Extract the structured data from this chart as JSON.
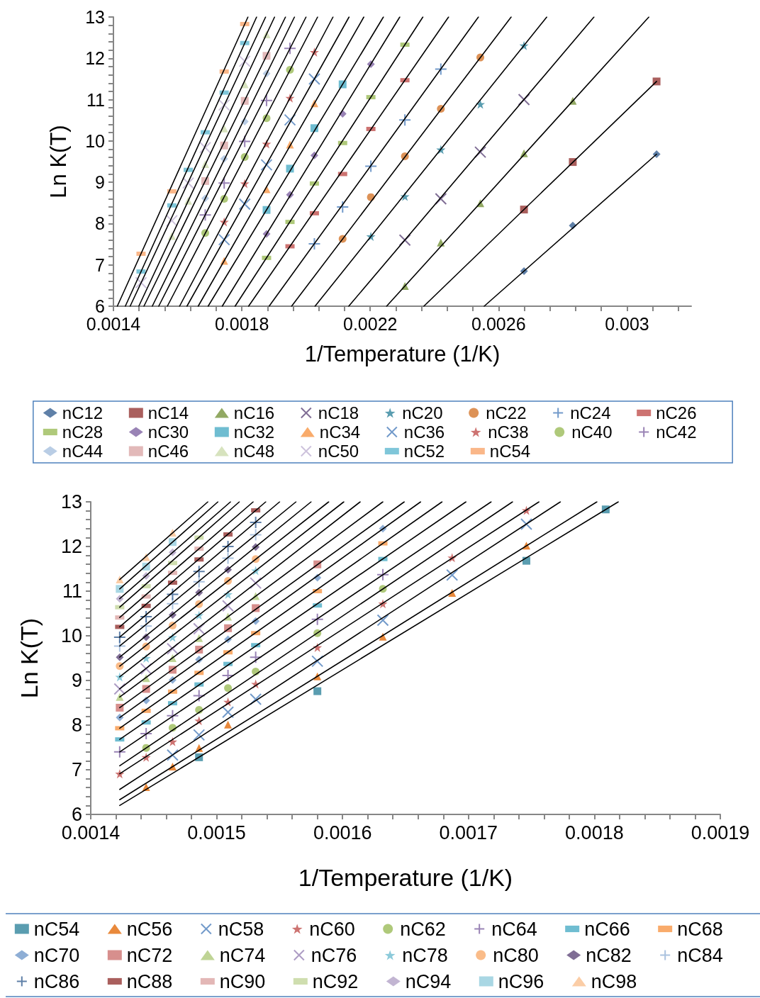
{
  "chart_data": [
    {
      "type": "scatter",
      "xlabel": "1/Temperature (1/K)",
      "ylabel": "Ln K(T)",
      "legend": "bottom",
      "line_style": "solid",
      "xlim": [
        0.0014,
        0.0032
      ],
      "xticks": [
        0.0014,
        {
          "value": 0.00148,
          "label": null
        },
        {
          "value": 0.00156,
          "label": null
        },
        {
          "value": 0.00164,
          "label": null
        },
        {
          "value": 0.00172,
          "label": null
        },
        0.0018,
        {
          "value": 0.00188,
          "label": null
        },
        {
          "value": 0.00196,
          "label": null
        },
        {
          "value": 0.00204,
          "label": null
        },
        {
          "value": 0.00212,
          "label": null
        },
        0.0022,
        {
          "value": 0.00228,
          "label": null
        },
        {
          "value": 0.00236,
          "label": null
        },
        {
          "value": 0.00244,
          "label": null
        },
        {
          "value": 0.00252,
          "label": null
        },
        0.0026,
        {
          "value": 0.00268,
          "label": null
        },
        {
          "value": 0.00276,
          "label": null
        },
        {
          "value": 0.00284,
          "label": null
        },
        {
          "value": 0.00292,
          "label": null
        },
        0.003,
        {
          "value": 0.00308,
          "label": null
        },
        {
          "value": 0.00316,
          "label": null
        }
      ],
      "ylim": [
        6,
        13
      ],
      "yticks": [
        6,
        {
          "value": 6.2,
          "label": null
        },
        {
          "value": 6.4,
          "label": null
        },
        {
          "value": 6.6,
          "label": null
        },
        {
          "value": 6.8,
          "label": null
        },
        7,
        {
          "value": 7.2,
          "label": null
        },
        {
          "value": 7.4,
          "label": null
        },
        {
          "value": 7.6,
          "label": null
        },
        {
          "value": 7.8,
          "label": null
        },
        8,
        {
          "value": 8.2,
          "label": null
        },
        {
          "value": 8.4,
          "label": null
        },
        {
          "value": 8.6,
          "label": null
        },
        {
          "value": 8.8,
          "label": null
        },
        9,
        {
          "value": 9.2,
          "label": null
        },
        {
          "value": 9.4,
          "label": null
        },
        {
          "value": 9.6,
          "label": null
        },
        {
          "value": 9.8,
          "label": null
        },
        10,
        {
          "value": 10.2,
          "label": null
        },
        {
          "value": 10.4,
          "label": null
        },
        {
          "value": 10.6,
          "label": null
        },
        {
          "value": 10.8,
          "label": null
        },
        11,
        {
          "value": 11.2,
          "label": null
        },
        {
          "value": 11.4,
          "label": null
        },
        {
          "value": 11.6,
          "label": null
        },
        {
          "value": 11.8,
          "label": null
        },
        12,
        {
          "value": 12.2,
          "label": null
        },
        {
          "value": 12.4,
          "label": null
        },
        {
          "value": 12.6,
          "label": null
        },
        {
          "value": 12.8,
          "label": null
        },
        13
      ],
      "series": [
        {
          "name": "nC12",
          "type": "scatter",
          "marker": "diamond",
          "color": "#376092",
          "x": [
            0.002679,
            0.002831,
            0.003092
          ],
          "values": [
            6.85,
            7.95,
            9.68
          ]
        },
        {
          "name": "nC14",
          "type": "scatter",
          "marker": "square",
          "color": "#953735",
          "x": [
            0.002679,
            0.002831,
            0.003092
          ],
          "values": [
            8.34,
            9.49,
            11.44
          ]
        },
        {
          "name": "nC16",
          "type": "scatter",
          "marker": "triangle",
          "color": "#77933c",
          "x": [
            0.002308,
            0.00242,
            0.002543,
            0.002679,
            0.002831
          ],
          "values": [
            6.49,
            7.54,
            8.49,
            9.7,
            10.97
          ]
        },
        {
          "name": "nC18",
          "type": "scatter",
          "marker": "cross",
          "color": "#604a7b",
          "x": [
            0.002308,
            0.00242,
            0.002543,
            0.002679
          ],
          "values": [
            7.6,
            8.6,
            9.73,
            11.0
          ]
        },
        {
          "name": "nC20",
          "type": "scatter",
          "marker": "star",
          "color": "#31859c",
          "x": [
            0.002202,
            0.002308,
            0.00242,
            0.002543,
            0.002679
          ],
          "values": [
            7.69,
            8.66,
            9.79,
            10.89,
            12.31
          ]
        },
        {
          "name": "nC22",
          "type": "scatter",
          "marker": "circle",
          "color": "#d4772d",
          "x": [
            0.002114,
            0.002202,
            0.002308,
            0.00242,
            0.002543
          ],
          "values": [
            7.63,
            8.64,
            9.63,
            10.78,
            12.02
          ]
        },
        {
          "name": "nC24",
          "type": "scatter",
          "marker": "plus",
          "color": "#4f81bd",
          "x": [
            0.002026,
            0.002114,
            0.002202,
            0.002308,
            0.00242
          ],
          "values": [
            7.51,
            8.4,
            9.39,
            10.51,
            11.74
          ]
        },
        {
          "name": "nC26",
          "type": "scatter",
          "color": "#c0504d",
          "x": [
            0.00195,
            0.002026,
            0.002114,
            0.002202,
            0.002308
          ],
          "values": [
            7.45,
            8.25,
            9.2,
            10.29,
            11.47
          ]
        },
        {
          "name": "nC28",
          "type": "scatter",
          "color": "#9bbb59",
          "x": [
            0.001877,
            0.00195,
            0.002026,
            0.002114,
            0.002202,
            0.002308
          ],
          "values": [
            7.17,
            8.04,
            8.97,
            9.95,
            11.06,
            12.33
          ]
        },
        {
          "name": "nC30",
          "type": "scatter",
          "marker": "diamond",
          "color": "#8064a2",
          "x": [
            0.001877,
            0.00195,
            0.002026,
            0.002114,
            0.002202
          ],
          "values": [
            7.75,
            8.7,
            9.65,
            10.66,
            11.86
          ]
        },
        {
          "name": "nC32",
          "type": "scatter",
          "marker": "square",
          "color": "#4bacc6",
          "x": [
            0.001877,
            0.00195,
            0.002026,
            0.002114
          ],
          "values": [
            8.33,
            9.33,
            10.31,
            11.37
          ]
        },
        {
          "name": "nC34",
          "type": "scatter",
          "marker": "triangle",
          "color": "#f79646",
          "x": [
            0.001745,
            0.001877,
            0.00195,
            0.002026
          ],
          "values": [
            7.1,
            8.83,
            9.91,
            10.91
          ]
        },
        {
          "name": "nC36",
          "type": "scatter",
          "marker": "cross",
          "color": "#4f81bd",
          "x": [
            0.001745,
            0.001809,
            0.001877,
            0.00195,
            0.002026
          ],
          "values": [
            7.61,
            8.47,
            9.42,
            10.51,
            11.5
          ]
        },
        {
          "name": "nC38",
          "type": "scatter",
          "marker": "star",
          "color": "#c0504d",
          "x": [
            0.001745,
            0.001809,
            0.001877,
            0.00195,
            0.002026
          ],
          "values": [
            8.04,
            8.97,
            9.93,
            11.04,
            12.15
          ]
        },
        {
          "name": "nC40",
          "type": "scatter",
          "marker": "circle",
          "color": "#9bbb59",
          "x": [
            0.001686,
            0.001745,
            0.001809,
            0.001877,
            0.00195
          ],
          "values": [
            7.77,
            8.6,
            9.61,
            10.55,
            11.72
          ]
        },
        {
          "name": "nC42",
          "type": "scatter",
          "marker": "plus",
          "color": "#8064a2",
          "x": [
            0.001686,
            0.001745,
            0.001809,
            0.001877,
            0.00195
          ],
          "values": [
            8.21,
            8.98,
            9.99,
            10.98,
            12.24
          ]
        },
        {
          "name": "nC44",
          "type": "scatter",
          "marker": "diamond",
          "color": "#a7c0de",
          "x": [
            0.001686,
            0.001745,
            0.001809,
            0.001877
          ],
          "values": [
            8.61,
            9.57,
            10.47,
            11.63
          ]
        },
        {
          "name": "nC46",
          "type": "scatter",
          "marker": "square",
          "color": "#dba8a7",
          "x": [
            0.001686,
            0.001745,
            0.001809,
            0.001877
          ],
          "values": [
            9.03,
            9.89,
            10.97,
            12.06
          ]
        },
        {
          "name": "nC48",
          "type": "scatter",
          "marker": "triangle",
          "color": "#cddcae",
          "x": [
            0.001582,
            0.001633,
            0.001686,
            0.001745,
            0.001809,
            0.001877
          ],
          "values": [
            7.7,
            8.55,
            9.44,
            10.3,
            11.37,
            12.58
          ]
        },
        {
          "name": "nC50",
          "type": "scatter",
          "marker": "cross",
          "color": "#c0b3d3",
          "x": [
            0.001486,
            0.001582,
            0.001633,
            0.001686,
            0.001745,
            0.001809
          ],
          "values": [
            6.57,
            8.07,
            8.98,
            9.84,
            10.87,
            11.93
          ]
        },
        {
          "name": "nC52",
          "type": "scatter",
          "color": "#5fb8d0",
          "x": [
            0.001486,
            0.001582,
            0.001633,
            0.001686,
            0.001745,
            0.001809
          ],
          "values": [
            6.84,
            8.44,
            9.3,
            10.21,
            11.17,
            12.37
          ]
        },
        {
          "name": "nC54",
          "type": "scatter",
          "color": "#f9a56b",
          "x": [
            0.001486,
            0.001582,
            0.001745,
            0.001809
          ],
          "values": [
            7.27,
            8.78,
            11.68,
            12.83
          ]
        },
        {
          "type": "line",
          "marker": "none",
          "color": "#000000",
          "x": [
            0.002555,
            0.003092
          ],
          "values": [
            6,
            9.68
          ]
        },
        {
          "type": "line",
          "marker": "none",
          "color": "#000000",
          "x": [
            0.002367,
            0.003092
          ],
          "values": [
            6,
            11.44
          ]
        },
        {
          "type": "line",
          "marker": "none",
          "color": "#000000",
          "x": [
            0.002251,
            0.003068
          ],
          "values": [
            6,
            13
          ]
        },
        {
          "type": "line",
          "marker": "none",
          "color": "#000000",
          "x": [
            0.002133,
            0.002897
          ],
          "values": [
            6,
            13
          ]
        },
        {
          "type": "line",
          "marker": "none",
          "color": "#000000",
          "x": [
            0.002028,
            0.00275
          ],
          "values": [
            6,
            13
          ]
        },
        {
          "type": "line",
          "marker": "none",
          "color": "#000000",
          "x": [
            0.001955,
            0.002639
          ],
          "values": [
            6,
            13
          ]
        },
        {
          "type": "line",
          "marker": "none",
          "color": "#000000",
          "x": [
            0.001885,
            0.002537
          ],
          "values": [
            6,
            13
          ]
        },
        {
          "type": "line",
          "marker": "none",
          "color": "#000000",
          "x": [
            0.001821,
            0.002444
          ],
          "values": [
            6,
            13
          ]
        },
        {
          "type": "line",
          "marker": "none",
          "color": "#000000",
          "x": [
            0.001779,
            0.002364
          ],
          "values": [
            6,
            13
          ]
        },
        {
          "type": "line",
          "marker": "none",
          "color": "#000000",
          "x": [
            0.001739,
            0.002292
          ],
          "values": [
            6,
            13
          ]
        },
        {
          "type": "line",
          "marker": "none",
          "color": "#000000",
          "x": [
            0.001695,
            0.002241
          ],
          "values": [
            6,
            13
          ]
        },
        {
          "type": "line",
          "marker": "none",
          "color": "#000000",
          "x": [
            0.001664,
            0.00218
          ],
          "values": [
            6,
            13
          ]
        },
        {
          "type": "line",
          "marker": "none",
          "color": "#000000",
          "x": [
            0.001629,
            0.002134
          ],
          "values": [
            6,
            13
          ]
        },
        {
          "type": "line",
          "marker": "none",
          "color": "#000000",
          "x": [
            0.001606,
            0.002084
          ],
          "values": [
            6,
            13
          ]
        },
        {
          "type": "line",
          "marker": "none",
          "color": "#000000",
          "x": [
            0.001568,
            0.002036
          ],
          "values": [
            6,
            13
          ]
        },
        {
          "type": "line",
          "marker": "none",
          "color": "#000000",
          "x": [
            0.001541,
            0.002
          ],
          "values": [
            6,
            13
          ]
        },
        {
          "type": "line",
          "marker": "none",
          "color": "#000000",
          "x": [
            0.001521,
            0.001964
          ],
          "values": [
            6,
            13
          ]
        },
        {
          "type": "line",
          "marker": "none",
          "color": "#000000",
          "x": [
            0.001495,
            0.001936
          ],
          "values": [
            6,
            13
          ]
        },
        {
          "type": "line",
          "marker": "none",
          "color": "#000000",
          "x": [
            0.001479,
            0.001902
          ],
          "values": [
            6,
            13
          ]
        },
        {
          "type": "line",
          "marker": "none",
          "color": "#000000",
          "x": [
            0.001452,
            0.001874
          ],
          "values": [
            6,
            13
          ]
        },
        {
          "type": "line",
          "marker": "none",
          "color": "#000000",
          "x": [
            0.001437,
            0.001846
          ],
          "values": [
            6,
            13
          ]
        },
        {
          "type": "line",
          "marker": "none",
          "color": "#000000",
          "x": [
            0.001412,
            0.001819
          ],
          "values": [
            6,
            13
          ]
        }
      ]
    },
    {
      "type": "scatter",
      "xlabel": "1/Temperature (1/K)",
      "ylabel": "Ln K(T)",
      "legend": "bottom",
      "line_style": "solid",
      "xlim": [
        0.0014,
        0.0019
      ],
      "xticks": [
        0.0014,
        {
          "value": 0.00142,
          "label": null
        },
        {
          "value": 0.00144,
          "label": null
        },
        {
          "value": 0.00146,
          "label": null
        },
        {
          "value": 0.00148,
          "label": null
        },
        0.0015,
        {
          "value": 0.00152,
          "label": null
        },
        {
          "value": 0.00154,
          "label": null
        },
        {
          "value": 0.00156,
          "label": null
        },
        {
          "value": 0.00158,
          "label": null
        },
        0.0016,
        {
          "value": 0.00162,
          "label": null
        },
        {
          "value": 0.00164,
          "label": null
        },
        {
          "value": 0.00166,
          "label": null
        },
        {
          "value": 0.00168,
          "label": null
        },
        0.0017,
        {
          "value": 0.00172,
          "label": null
        },
        {
          "value": 0.00174,
          "label": null
        },
        {
          "value": 0.00176,
          "label": null
        },
        {
          "value": 0.00178,
          "label": null
        },
        0.0018,
        {
          "value": 0.00182,
          "label": null
        },
        {
          "value": 0.00184,
          "label": null
        },
        {
          "value": 0.00186,
          "label": null
        },
        {
          "value": 0.00188,
          "label": null
        },
        0.0019
      ],
      "ylim": [
        6,
        13
      ],
      "yticks": [
        6,
        {
          "value": 6.2,
          "label": null
        },
        {
          "value": 6.4,
          "label": null
        },
        {
          "value": 6.6,
          "label": null
        },
        {
          "value": 6.8,
          "label": null
        },
        7,
        {
          "value": 7.2,
          "label": null
        },
        {
          "value": 7.4,
          "label": null
        },
        {
          "value": 7.6,
          "label": null
        },
        {
          "value": 7.8,
          "label": null
        },
        8,
        {
          "value": 8.2,
          "label": null
        },
        {
          "value": 8.4,
          "label": null
        },
        {
          "value": 8.6,
          "label": null
        },
        {
          "value": 8.8,
          "label": null
        },
        9,
        {
          "value": 9.2,
          "label": null
        },
        {
          "value": 9.4,
          "label": null
        },
        {
          "value": 9.6,
          "label": null
        },
        {
          "value": 9.8,
          "label": null
        },
        10,
        {
          "value": 10.2,
          "label": null
        },
        {
          "value": 10.4,
          "label": null
        },
        {
          "value": 10.6,
          "label": null
        },
        {
          "value": 10.8,
          "label": null
        },
        11,
        {
          "value": 11.2,
          "label": null
        },
        {
          "value": 11.4,
          "label": null
        },
        {
          "value": 11.6,
          "label": null
        },
        {
          "value": 11.8,
          "label": null
        },
        12,
        {
          "value": 12.2,
          "label": null
        },
        {
          "value": 12.4,
          "label": null
        },
        {
          "value": 12.6,
          "label": null
        },
        {
          "value": 12.8,
          "label": null
        },
        13
      ],
      "series": [
        {
          "name": "nC54",
          "type": "scatter",
          "marker": "square",
          "color": "#31859c",
          "x": [
            0.001486,
            0.00158,
            0.001746,
            0.001809
          ],
          "values": [
            7.28,
            8.76,
            11.68,
            12.83
          ]
        },
        {
          "name": "nC56",
          "type": "scatter",
          "marker": "triangle",
          "color": "#e46c0a",
          "x": [
            0.001444,
            0.001465,
            0.001486,
            0.001509,
            0.00158,
            0.001632,
            0.001687,
            0.001746
          ],
          "values": [
            6.61,
            7.07,
            7.49,
            8.01,
            9.09,
            9.98,
            10.96,
            12.02
          ]
        },
        {
          "name": "nC58",
          "type": "scatter",
          "marker": "cross",
          "color": "#4f81bd",
          "x": [
            0.001465,
            0.001486,
            0.001509,
            0.001531,
            0.00158,
            0.001632,
            0.001687,
            0.001746
          ],
          "values": [
            7.33,
            7.78,
            8.29,
            8.58,
            9.43,
            10.35,
            11.36,
            12.5
          ]
        },
        {
          "name": "nC60",
          "type": "scatter",
          "marker": "star",
          "color": "#c0504d",
          "x": [
            0.001423,
            0.001444,
            0.001465,
            0.001486,
            0.001509,
            0.001531,
            0.00158,
            0.001632,
            0.001687,
            0.001746
          ],
          "values": [
            6.91,
            7.28,
            7.63,
            8.1,
            8.52,
            8.92,
            9.74,
            10.72,
            11.75,
            12.81
          ]
        },
        {
          "name": "nC62",
          "type": "scatter",
          "marker": "circle",
          "color": "#9bbb59",
          "x": [
            0.001444,
            0.001465,
            0.001486,
            0.001509,
            0.001531,
            0.00158,
            0.001632
          ],
          "values": [
            7.49,
            7.94,
            8.34,
            8.83,
            9.2,
            10.06,
            11.05
          ]
        },
        {
          "name": "nC64",
          "type": "scatter",
          "marker": "plus",
          "color": "#8064a2",
          "x": [
            0.001423,
            0.001444,
            0.001465,
            0.001486,
            0.001509,
            0.001531,
            0.00158,
            0.001632
          ],
          "values": [
            7.4,
            7.81,
            8.21,
            8.66,
            9.11,
            9.52,
            10.37,
            11.37
          ]
        },
        {
          "name": "nC66",
          "type": "scatter",
          "color": "#4bacc6",
          "x": [
            0.001423,
            0.001444,
            0.001465,
            0.001486,
            0.001509,
            0.001531,
            0.00158,
            0.001632
          ],
          "values": [
            7.68,
            8.06,
            8.49,
            8.91,
            9.37,
            9.79,
            10.68,
            11.72
          ]
        },
        {
          "name": "nC68",
          "type": "scatter",
          "color": "#f79646",
          "x": [
            0.001423,
            0.001444,
            0.001465,
            0.001486,
            0.001509,
            0.001531,
            0.00158,
            0.001632
          ],
          "values": [
            7.93,
            8.32,
            8.75,
            9.17,
            9.63,
            10.06,
            11.0,
            12.07
          ]
        },
        {
          "name": "nC70",
          "type": "scatter",
          "marker": "diamond",
          "color": "#729aca",
          "x": [
            0.001423,
            0.001444,
            0.001465,
            0.001486,
            0.001509,
            0.001531,
            0.00158,
            0.001632
          ],
          "values": [
            8.17,
            8.55,
            9.01,
            9.47,
            9.92,
            10.33,
            11.3,
            12.4
          ]
        },
        {
          "name": "nC72",
          "type": "scatter",
          "marker": "square",
          "color": "#cd7371",
          "x": [
            0.001423,
            0.001444,
            0.001465,
            0.001486,
            0.001509,
            0.001531,
            0.00158
          ],
          "values": [
            8.39,
            8.81,
            9.24,
            9.69,
            10.17,
            10.62,
            11.6
          ]
        },
        {
          "name": "nC74",
          "type": "scatter",
          "marker": "triangle",
          "color": "#afc97a",
          "x": [
            0.001423,
            0.001444,
            0.001465,
            0.001486,
            0.001509,
            0.001531
          ],
          "values": [
            8.63,
            9.05,
            9.5,
            9.95,
            10.43,
            10.89
          ]
        },
        {
          "name": "nC76",
          "type": "scatter",
          "marker": "cross",
          "color": "#9983b5",
          "x": [
            0.001423,
            0.001444,
            0.001465,
            0.001486,
            0.001509,
            0.001531
          ],
          "values": [
            8.81,
            9.26,
            9.71,
            10.16,
            10.67,
            11.18
          ]
        },
        {
          "name": "nC78",
          "type": "scatter",
          "marker": "star",
          "color": "#6fbdd1",
          "x": [
            0.001423,
            0.001444,
            0.001465,
            0.001486,
            0.001509,
            0.001531
          ],
          "values": [
            9.08,
            9.5,
            9.97,
            10.46,
            10.93,
            11.46
          ]
        },
        {
          "name": "nC80",
          "type": "scatter",
          "marker": "circle",
          "color": "#f9ab6b",
          "x": [
            0.001423,
            0.001444,
            0.001465,
            0.001486,
            0.001509,
            0.001531
          ],
          "values": [
            9.32,
            9.76,
            10.23,
            10.71,
            11.23,
            11.72
          ]
        },
        {
          "name": "nC82",
          "type": "scatter",
          "marker": "diamond",
          "color": "#604a7b",
          "x": [
            0.001423,
            0.001444,
            0.001465,
            0.001486,
            0.001509,
            0.001531
          ],
          "values": [
            9.52,
            9.97,
            10.47,
            10.97,
            11.48,
            11.99
          ]
        },
        {
          "name": "nC84",
          "type": "scatter",
          "marker": "plus",
          "color": "#95b3d7",
          "x": [
            0.001423,
            0.001444,
            0.001465,
            0.001486,
            0.001509,
            0.001531
          ],
          "values": [
            9.77,
            10.22,
            10.72,
            11.21,
            11.74,
            12.26
          ]
        },
        {
          "name": "nC86",
          "type": "scatter",
          "marker": "plus",
          "color": "#376092",
          "x": [
            0.001423,
            0.001444,
            0.001465,
            0.001486,
            0.001509,
            0.001531
          ],
          "values": [
            9.97,
            10.43,
            10.93,
            11.44,
            12.0,
            12.54
          ]
        },
        {
          "name": "nC88",
          "type": "scatter",
          "color": "#953735",
          "x": [
            0.001423,
            0.001444,
            0.001465,
            0.001486,
            0.001509,
            0.001531
          ],
          "values": [
            10.2,
            10.67,
            11.19,
            11.71,
            12.27,
            12.81
          ]
        },
        {
          "name": "nC90",
          "type": "scatter",
          "color": "#dca5a4",
          "x": [
            0.001423,
            0.001444,
            0.001465,
            0.001486
          ],
          "values": [
            10.41,
            10.88,
            11.41,
            11.95
          ]
        },
        {
          "name": "nC92",
          "type": "scatter",
          "color": "#c3d69b",
          "x": [
            0.001423,
            0.001444,
            0.001465,
            0.001486
          ],
          "values": [
            10.64,
            11.11,
            11.63,
            12.2
          ]
        },
        {
          "name": "nC94",
          "type": "scatter",
          "marker": "diamond",
          "color": "#b3a2c7",
          "x": [
            0.001423,
            0.001444,
            0.001465
          ],
          "values": [
            10.83,
            11.34,
            11.87
          ]
        },
        {
          "name": "nC96",
          "type": "scatter",
          "marker": "square",
          "color": "#93cddd",
          "x": [
            0.001423,
            0.001444,
            0.001465
          ],
          "values": [
            11.05,
            11.55,
            12.1
          ]
        },
        {
          "name": "nC98",
          "type": "scatter",
          "marker": "triangle",
          "color": "#fac090",
          "x": [
            0.001423,
            0.001444,
            0.001465
          ],
          "values": [
            11.26,
            11.76,
            12.31
          ]
        },
        {
          "type": "line",
          "marker": "none",
          "color": "#000000",
          "x": [
            0.001423,
            0.001819
          ],
          "values": [
            6.2,
            13
          ]
        },
        {
          "type": "line",
          "marker": "none",
          "color": "#000000",
          "x": [
            0.001423,
            0.001802
          ],
          "values": [
            6.33,
            13
          ]
        },
        {
          "type": "line",
          "marker": "none",
          "color": "#000000",
          "x": [
            0.001423,
            0.001773
          ],
          "values": [
            6.56,
            13
          ]
        },
        {
          "type": "line",
          "marker": "none",
          "color": "#000000",
          "x": [
            0.001423,
            0.001756
          ],
          "values": [
            6.91,
            13
          ]
        },
        {
          "type": "line",
          "marker": "none",
          "color": "#000000",
          "x": [
            0.001423,
            0.001735
          ],
          "values": [
            7.09,
            13
          ]
        },
        {
          "type": "line",
          "marker": "none",
          "color": "#000000",
          "x": [
            0.001423,
            0.001718
          ],
          "values": [
            7.4,
            13
          ]
        },
        {
          "type": "line",
          "marker": "none",
          "color": "#000000",
          "x": [
            0.001423,
            0.001698
          ],
          "values": [
            7.68,
            13
          ]
        },
        {
          "type": "line",
          "marker": "none",
          "color": "#000000",
          "x": [
            0.001423,
            0.001679
          ],
          "values": [
            7.93,
            13
          ]
        },
        {
          "type": "line",
          "marker": "none",
          "color": "#000000",
          "x": [
            0.001423,
            0.001662
          ],
          "values": [
            8.17,
            13
          ]
        },
        {
          "type": "line",
          "marker": "none",
          "color": "#000000",
          "x": [
            0.001423,
            0.001649
          ],
          "values": [
            8.39,
            13
          ]
        },
        {
          "type": "line",
          "marker": "none",
          "color": "#000000",
          "x": [
            0.001423,
            0.001632
          ],
          "values": [
            8.63,
            13
          ]
        },
        {
          "type": "line",
          "marker": "none",
          "color": "#000000",
          "x": [
            0.001423,
            0.001614
          ],
          "values": [
            8.81,
            13
          ]
        },
        {
          "type": "line",
          "marker": "none",
          "color": "#000000",
          "x": [
            0.001423,
            0.001601
          ],
          "values": [
            9.08,
            13
          ]
        },
        {
          "type": "line",
          "marker": "none",
          "color": "#000000",
          "x": [
            0.001423,
            0.001589
          ],
          "values": [
            9.32,
            13
          ]
        },
        {
          "type": "line",
          "marker": "none",
          "color": "#000000",
          "x": [
            0.001423,
            0.001575
          ],
          "values": [
            9.52,
            13
          ]
        },
        {
          "type": "line",
          "marker": "none",
          "color": "#000000",
          "x": [
            0.001423,
            0.001563
          ],
          "values": [
            9.77,
            13
          ]
        },
        {
          "type": "line",
          "marker": "none",
          "color": "#000000",
          "x": [
            0.001423,
            0.00155
          ],
          "values": [
            9.97,
            13
          ]
        },
        {
          "type": "line",
          "marker": "none",
          "color": "#000000",
          "x": [
            0.001423,
            0.001539
          ],
          "values": [
            10.2,
            13
          ]
        },
        {
          "type": "line",
          "marker": "none",
          "color": "#000000",
          "x": [
            0.001423,
            0.001529
          ],
          "values": [
            10.41,
            13
          ]
        },
        {
          "type": "line",
          "marker": "none",
          "color": "#000000",
          "x": [
            0.001423,
            0.001518
          ],
          "values": [
            10.64,
            13
          ]
        },
        {
          "type": "line",
          "marker": "none",
          "color": "#000000",
          "x": [
            0.001423,
            0.001511
          ],
          "values": [
            10.83,
            13
          ]
        },
        {
          "type": "line",
          "marker": "none",
          "color": "#000000",
          "x": [
            0.001423,
            0.001501
          ],
          "values": [
            11.05,
            13
          ]
        },
        {
          "type": "line",
          "marker": "none",
          "color": "#000000",
          "x": [
            0.001423,
            0.001493
          ],
          "values": [
            11.26,
            13
          ]
        }
      ]
    }
  ]
}
